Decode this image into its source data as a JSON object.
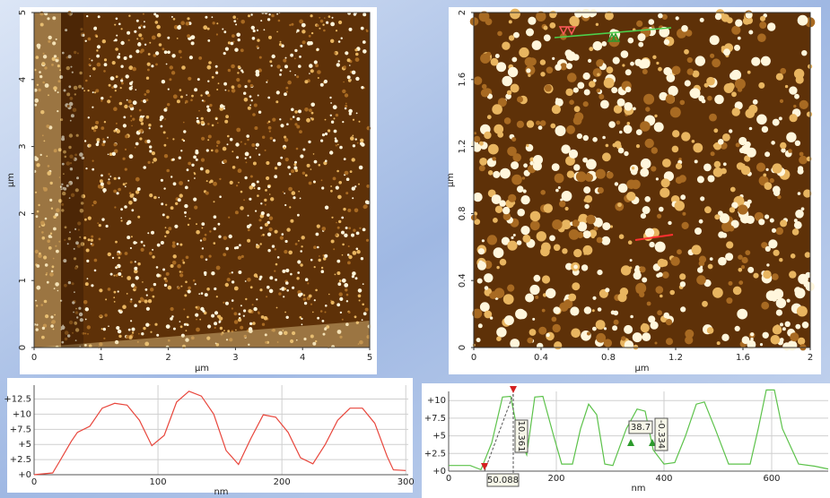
{
  "chart_data": [
    {
      "type": "image",
      "xlabel": "µm",
      "ylabel": "µm",
      "xlim": [
        0,
        5
      ],
      "ylim": [
        0,
        5
      ],
      "xticks": [
        0,
        1,
        2,
        3,
        4,
        5
      ],
      "yticks": [
        0,
        1,
        2,
        3,
        4,
        5
      ]
    },
    {
      "type": "image",
      "xlabel": "µm",
      "ylabel": "µm",
      "xlim": [
        0,
        2
      ],
      "ylim": [
        0,
        2
      ],
      "xticks": [
        0,
        0.4,
        0.8,
        1.2,
        1.6,
        2
      ],
      "yticks": [
        0,
        0.4,
        0.8,
        1.2,
        1.6,
        2
      ]
    },
    {
      "type": "line",
      "xlabel": "nm",
      "xlim": [
        0,
        302
      ],
      "ylim": [
        0,
        14.8
      ],
      "grid": true,
      "xticks": [
        0,
        100,
        200,
        300
      ],
      "yticks": [
        {
          "value": 0,
          "label": "+0"
        },
        {
          "value": 2.5,
          "label": "+2.5"
        },
        {
          "value": 5,
          "label": "+5"
        },
        {
          "value": 7.5,
          "label": "+7.5"
        },
        {
          "value": 10,
          "label": "+10"
        },
        {
          "value": 12.5,
          "label": "+12.5"
        }
      ],
      "x": [
        0,
        15,
        20,
        30,
        35,
        45,
        55,
        65,
        75,
        85,
        95,
        105,
        115,
        125,
        135,
        145,
        155,
        165,
        175,
        185,
        195,
        205,
        215,
        225,
        235,
        245,
        255,
        265,
        275,
        285,
        290,
        300
      ],
      "series": [
        {
          "color": "#e8463c",
          "values": [
            0,
            0.3,
            2,
            5.5,
            7,
            8,
            11,
            11.8,
            11.5,
            9,
            4.8,
            6.5,
            12,
            13.8,
            13,
            10,
            4,
            1.7,
            6,
            9.9,
            9.5,
            7,
            2.8,
            1.8,
            5,
            9,
            11,
            11,
            8.5,
            3,
            0.8,
            0.7
          ]
        }
      ]
    },
    {
      "type": "line",
      "xlabel": "nm",
      "xlim": [
        0,
        705
      ],
      "ylim": [
        0,
        11.3
      ],
      "grid": true,
      "xticks": [
        0,
        200,
        400,
        600
      ],
      "yticks": [
        {
          "value": 0,
          "label": "+0"
        },
        {
          "value": 2.5,
          "label": "+2.5"
        },
        {
          "value": 5,
          "label": "+5"
        },
        {
          "value": 7.5,
          "label": "+7.5"
        },
        {
          "value": 10,
          "label": "+10"
        }
      ],
      "x": [
        0,
        40,
        60,
        80,
        100,
        115,
        130,
        145,
        160,
        175,
        195,
        210,
        230,
        245,
        260,
        275,
        290,
        305,
        330,
        350,
        365,
        380,
        400,
        420,
        440,
        460,
        475,
        495,
        520,
        560,
        575,
        590,
        605,
        620,
        650,
        680,
        705
      ],
      "series": [
        {
          "color": "#5cc24a",
          "values": [
            0.8,
            0.8,
            0.2,
            4,
            10.5,
            10.6,
            5,
            2.3,
            10.5,
            10.6,
            5,
            1,
            1,
            6,
            9.5,
            8,
            1,
            0.8,
            6,
            8.8,
            8.5,
            3,
            1,
            1.2,
            5,
            9.5,
            9.8,
            6,
            1,
            1,
            6,
            11.5,
            11.5,
            6,
            1,
            0.7,
            0.3
          ]
        }
      ],
      "annotations": [
        "50.088",
        "10.361",
        "38.7",
        "-0.334"
      ]
    }
  ]
}
